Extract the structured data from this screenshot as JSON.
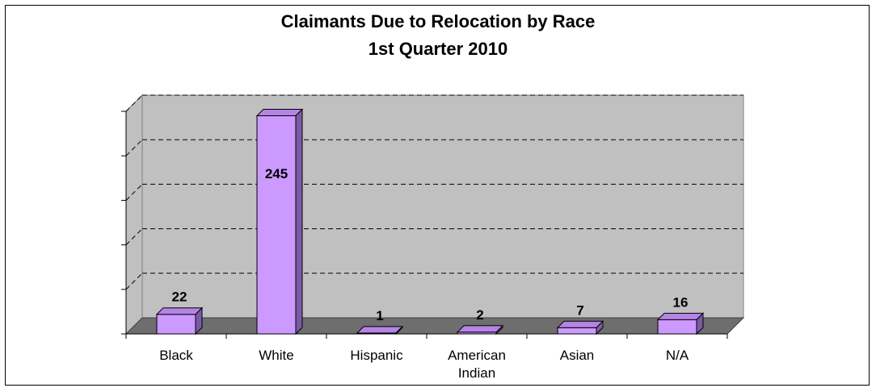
{
  "chart_data": {
    "type": "bar",
    "title": "Claimants Due to Relocation by Race",
    "subtitle": "1st Quarter 2010",
    "categories": [
      "Black",
      "White",
      "Hispanic",
      "American Indian",
      "Asian",
      "N/A"
    ],
    "category_lines": [
      [
        "Black"
      ],
      [
        "White"
      ],
      [
        "Hispanic"
      ],
      [
        "American",
        "Indian"
      ],
      [
        "Asian"
      ],
      [
        "N/A"
      ]
    ],
    "values": [
      22,
      245,
      1,
      2,
      7,
      16
    ],
    "data_labels": [
      "22",
      "245",
      "1",
      "2",
      "7",
      "16"
    ],
    "ylim": [
      0,
      250
    ],
    "gridlines": true,
    "three_d": true,
    "colors": {
      "bar_front": "#cc99ff",
      "bar_top": "#b584e6",
      "bar_side": "#7a5aa8",
      "wall": "#c0c0c0",
      "floor": "#6e6e6e"
    }
  }
}
